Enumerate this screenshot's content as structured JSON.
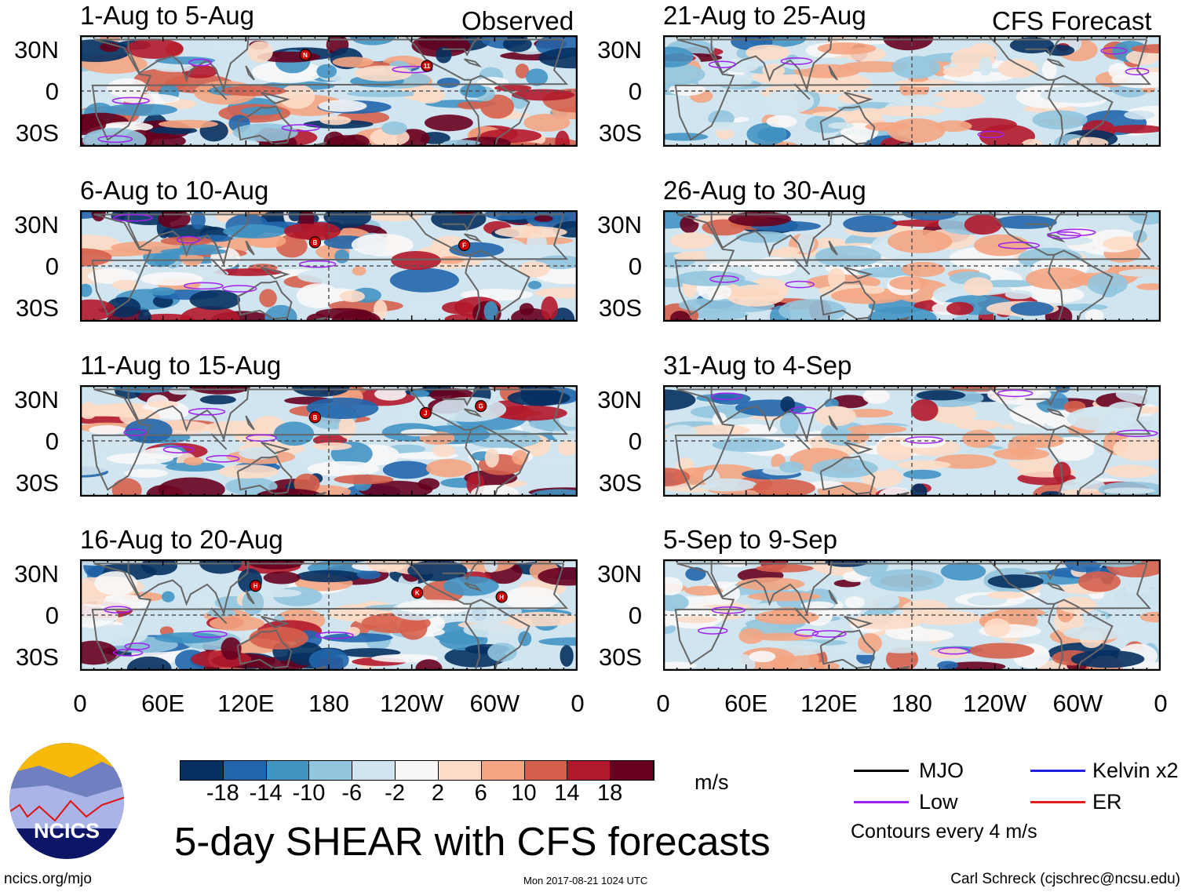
{
  "header": {
    "observed_label": "Observed",
    "forecast_label": "CFS Forecast"
  },
  "colors": {
    "land": "#666666",
    "low": "#a020f0",
    "mjo": "#000000",
    "kelvin": "#2020e0",
    "er": "#e02020"
  },
  "chart_data": {
    "type": "heatmap",
    "title": "5-day SHEAR with CFS forecasts",
    "units": "m/s",
    "colorbar": {
      "ticks": [
        "-18",
        "-14",
        "-10",
        "-6",
        "-2",
        "2",
        "6",
        "10",
        "14",
        "18"
      ],
      "colors": [
        "#053061",
        "#2166ac",
        "#4393c3",
        "#92c5de",
        "#d1e5f0",
        "#f7f7f7",
        "#fddbc7",
        "#f4a582",
        "#d6604d",
        "#b2182b",
        "#67001f"
      ]
    },
    "x_ticks": [
      "0",
      "60E",
      "120E",
      "180",
      "120W",
      "60W",
      "0"
    ],
    "y_ticks": [
      "30N",
      "0",
      "30S"
    ],
    "lon_range": [
      0,
      360
    ],
    "lat_range": [
      -40,
      40
    ],
    "panels": [
      {
        "title": "1-Aug to 5-Aug",
        "type": "Observed",
        "storms": [
          {
            "label": "N",
            "lon": 163,
            "lat": 26
          },
          {
            "label": "11",
            "lon": 251,
            "lat": 18
          }
        ]
      },
      {
        "title": "6-Aug to 10-Aug",
        "type": "Observed",
        "storms": [
          {
            "label": "B",
            "lon": 170,
            "lat": 17
          },
          {
            "label": "F",
            "lon": 278,
            "lat": 15
          }
        ]
      },
      {
        "title": "11-Aug to 15-Aug",
        "type": "Observed",
        "storms": [
          {
            "label": "B",
            "lon": 170,
            "lat": 17
          },
          {
            "label": "J",
            "lon": 250,
            "lat": 20
          },
          {
            "label": "G",
            "lon": 290,
            "lat": 25
          }
        ]
      },
      {
        "title": "16-Aug to 20-Aug",
        "type": "Observed",
        "storms": [
          {
            "label": "H",
            "lon": 127,
            "lat": 21
          },
          {
            "label": "K",
            "lon": 244,
            "lat": 16
          },
          {
            "label": "H",
            "lon": 305,
            "lat": 13
          }
        ]
      },
      {
        "title": "21-Aug to 25-Aug",
        "type": "CFS Forecast",
        "storms": []
      },
      {
        "title": "26-Aug to 30-Aug",
        "type": "CFS Forecast",
        "storms": []
      },
      {
        "title": "31-Aug to 4-Sep",
        "type": "CFS Forecast",
        "storms": []
      },
      {
        "title": "5-Sep to 9-Sep",
        "type": "CFS Forecast",
        "storms": []
      }
    ]
  },
  "legend": {
    "mjo": "MJO",
    "kelvin": "Kelvin x2",
    "low": "Low",
    "er": "ER",
    "contours": "Contours every 4 m/s"
  },
  "footer": {
    "logo_text": "NCICS",
    "url": "ncics.org/mjo",
    "timestamp": "Mon 2017-08-21 1024 UTC",
    "author": "Carl Schreck (cjschrec@ncsu.edu)"
  }
}
